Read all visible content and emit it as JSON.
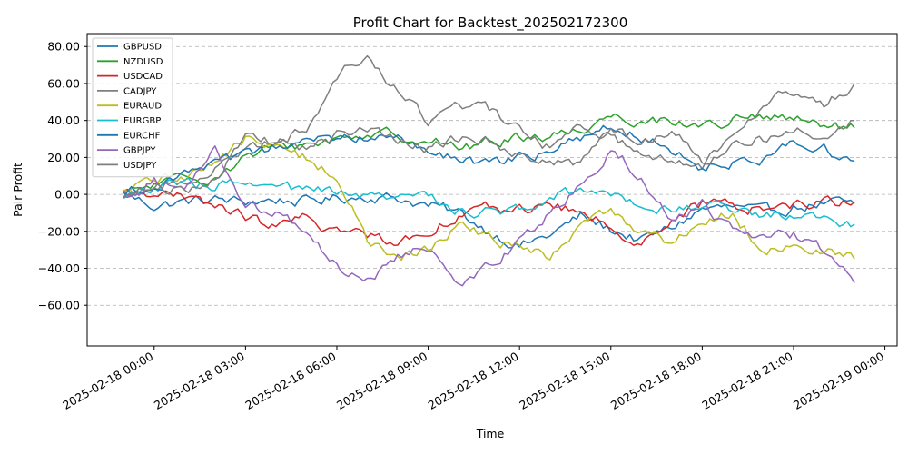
{
  "chart_data": {
    "type": "line",
    "title": "Profit Chart for Backtest_202502172300",
    "xlabel": "Time",
    "ylabel": "Pair Profit",
    "x_range_hours": [
      -2.2,
      24.4
    ],
    "ylim": [
      -82,
      87
    ],
    "y_ticks": [
      80,
      60,
      40,
      20,
      0,
      -20,
      -40,
      -60
    ],
    "y_tick_labels": [
      "80.00",
      "60.00",
      "40.00",
      "20.00",
      "0.00",
      "−20.00",
      "−40.00",
      "−60.00"
    ],
    "x_ticks_hours": [
      0,
      3,
      6,
      9,
      12,
      15,
      18,
      21,
      24
    ],
    "x_tick_labels": [
      "2025-02-18 00:00",
      "2025-02-18 03:00",
      "2025-02-18 06:00",
      "2025-02-18 09:00",
      "2025-02-18 12:00",
      "2025-02-18 15:00",
      "2025-02-18 18:00",
      "2025-02-18 21:00",
      "2025-02-19 00:00"
    ],
    "grid": "y-dashed",
    "legend_position": "top-left",
    "x_unit": "hours since 2025-02-18 00:00",
    "series": [
      {
        "name": "GBPUSD",
        "color": "#1f77b4",
        "x": [
          -1,
          0,
          1,
          2,
          3,
          4,
          5,
          6,
          7,
          8,
          9,
          10,
          11,
          12,
          13,
          14,
          15,
          16,
          17,
          18,
          19,
          20,
          21,
          22,
          23
        ],
        "values": [
          0,
          -6,
          -4,
          -3,
          -4,
          -3,
          -4,
          -2,
          -1,
          -2,
          -6,
          -10,
          -20,
          -28,
          -22,
          -12,
          -19,
          -25,
          -18,
          -8,
          -7,
          -10,
          -7,
          -5,
          -5
        ]
      },
      {
        "name": "NZDUSD",
        "color": "#2ca02c",
        "x": [
          -1,
          0,
          1,
          2,
          3,
          4,
          5,
          6,
          7,
          8,
          9,
          10,
          11,
          12,
          13,
          14,
          15,
          16,
          17,
          18,
          19,
          20,
          21,
          22,
          23
        ],
        "values": [
          0,
          5,
          8,
          10,
          20,
          25,
          27,
          30,
          33,
          32,
          30,
          25,
          28,
          31,
          32,
          35,
          43,
          40,
          40,
          37,
          40,
          42,
          40,
          37,
          36
        ]
      },
      {
        "name": "USDCAD",
        "color": "#d62728",
        "x": [
          -1,
          0,
          1,
          2,
          3,
          4,
          5,
          6,
          7,
          8,
          9,
          10,
          11,
          12,
          13,
          14,
          15,
          16,
          17,
          18,
          19,
          20,
          21,
          22,
          23
        ],
        "values": [
          0,
          2,
          -3,
          -6,
          -12,
          -18,
          -13,
          -20,
          -22,
          -25,
          -20,
          -10,
          -8,
          -8,
          -6,
          -10,
          -18,
          -25,
          -15,
          -5,
          -6,
          -8,
          -5,
          -4,
          -4
        ]
      },
      {
        "name": "CADJPY",
        "color": "#7f7f7f",
        "x": [
          -1,
          0,
          1,
          2,
          3,
          4,
          5,
          6,
          7,
          8,
          9,
          10,
          11,
          12,
          13,
          14,
          15,
          16,
          17,
          18,
          19,
          20,
          21,
          22,
          23
        ],
        "values": [
          0,
          3,
          7,
          14,
          25,
          30,
          35,
          65,
          75,
          55,
          40,
          50,
          45,
          35,
          25,
          40,
          30,
          25,
          18,
          15,
          35,
          50,
          55,
          48,
          60
        ]
      },
      {
        "name": "EURAUD",
        "color": "#bcbd22",
        "x": [
          -1,
          0,
          1,
          2,
          3,
          4,
          5,
          6,
          7,
          8,
          9,
          10,
          11,
          12,
          13,
          14,
          15,
          16,
          17,
          18,
          19,
          20,
          21,
          22,
          23
        ],
        "values": [
          0,
          8,
          10,
          18,
          30,
          25,
          20,
          10,
          -25,
          -35,
          -30,
          -15,
          -25,
          -28,
          -35,
          -15,
          -10,
          -20,
          -25,
          -15,
          -10,
          -30,
          -28,
          -30,
          -35
        ]
      },
      {
        "name": "EURGBP",
        "color": "#17becf",
        "x": [
          -1,
          0,
          1,
          2,
          3,
          4,
          5,
          6,
          7,
          8,
          9,
          10,
          11,
          12,
          13,
          14,
          15,
          16,
          17,
          18,
          19,
          20,
          21,
          22,
          23
        ],
        "values": [
          0,
          3,
          5,
          5,
          5,
          3,
          2,
          0,
          -2,
          -3,
          0,
          -8,
          -10,
          -8,
          0,
          2,
          2,
          -5,
          -8,
          -6,
          -8,
          -12,
          -10,
          -12,
          -16
        ]
      },
      {
        "name": "EURCHF",
        "color": "#1f77b4",
        "x": [
          -1,
          0,
          1,
          2,
          3,
          4,
          5,
          6,
          7,
          8,
          9,
          10,
          11,
          12,
          13,
          14,
          15,
          16,
          17,
          18,
          19,
          20,
          21,
          22,
          23
        ],
        "values": [
          0,
          5,
          12,
          15,
          20,
          25,
          28,
          30,
          32,
          30,
          25,
          18,
          15,
          20,
          22,
          30,
          38,
          32,
          25,
          15,
          18,
          20,
          28,
          25,
          18
        ]
      },
      {
        "name": "GBPJPY",
        "color": "#9467bd",
        "x": [
          -1,
          0,
          1,
          2,
          3,
          4,
          5,
          6,
          7,
          8,
          9,
          10,
          11,
          12,
          13,
          14,
          15,
          16,
          17,
          18,
          19,
          20,
          21,
          22,
          23
        ],
        "values": [
          0,
          8,
          2,
          25,
          -5,
          -10,
          -20,
          -40,
          -45,
          -35,
          -28,
          -50,
          -40,
          -25,
          -10,
          5,
          25,
          10,
          -15,
          -5,
          -20,
          -25,
          -22,
          -30,
          -48
        ]
      },
      {
        "name": "USDJPY",
        "color": "#7f7f7f",
        "x": [
          -1,
          0,
          1,
          2,
          3,
          4,
          5,
          6,
          7,
          8,
          9,
          10,
          11,
          12,
          13,
          14,
          15,
          16,
          17,
          18,
          19,
          20,
          21,
          22,
          23
        ],
        "values": [
          0,
          5,
          2,
          10,
          30,
          28,
          25,
          32,
          35,
          30,
          25,
          30,
          28,
          22,
          20,
          15,
          35,
          30,
          35,
          20,
          25,
          30,
          35,
          32,
          40
        ]
      }
    ]
  }
}
